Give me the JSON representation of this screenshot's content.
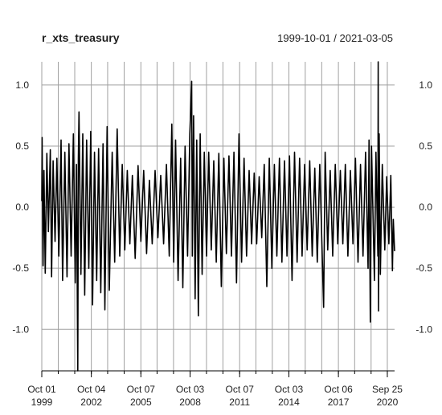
{
  "chart_data": {
    "type": "line",
    "title": "r_xts_treasury",
    "date_range": "1999-10-01 / 2021-03-05",
    "xlabel": "",
    "ylabel": "",
    "xlim": [
      "1999-10-01",
      "2021-03-05"
    ],
    "ylim": [
      -1.34,
      1.19
    ],
    "grid": true,
    "legend": "none",
    "line_color": "#000000",
    "grid_color": "#a0a0a0",
    "y_ticks": [
      {
        "value": 1.0,
        "label": "1.0"
      },
      {
        "value": 0.5,
        "label": "0.5"
      },
      {
        "value": 0.0,
        "label": "0.0"
      },
      {
        "value": -0.5,
        "label": "-0.5"
      },
      {
        "value": -1.0,
        "label": "-1.0"
      }
    ],
    "x_major_ticks": [
      {
        "date": "1999-10-01",
        "label1": "Oct 01",
        "label2": "1999"
      },
      {
        "date": "2002-10-04",
        "label1": "Oct 04",
        "label2": "2002"
      },
      {
        "date": "2005-10-07",
        "label1": "Oct 07",
        "label2": "2005"
      },
      {
        "date": "2008-10-03",
        "label1": "Oct 03",
        "label2": "2008"
      },
      {
        "date": "2011-10-07",
        "label1": "Oct 07",
        "label2": "2011"
      },
      {
        "date": "2014-10-03",
        "label1": "Oct 03",
        "label2": "2014"
      },
      {
        "date": "2017-10-06",
        "label1": "Oct 06",
        "label2": "2017"
      },
      {
        "date": "2020-09-25",
        "label1": "Sep 25",
        "label2": "2020"
      }
    ],
    "x_grid_dates": [
      "1999-10-01",
      "2000-10-01",
      "2001-10-01",
      "2002-10-04",
      "2003-10-01",
      "2004-10-01",
      "2005-10-07",
      "2006-10-01",
      "2007-10-01",
      "2008-10-03",
      "2009-10-01",
      "2010-10-01",
      "2011-10-07",
      "2012-10-01",
      "2013-10-01",
      "2014-10-03",
      "2015-10-01",
      "2016-10-01",
      "2017-10-06",
      "2018-10-01",
      "2019-10-01",
      "2020-09-25"
    ],
    "series": [
      {
        "values": [
          {
            "x": "1999-10-01",
            "y": 0.05
          },
          {
            "x": "1999-10-08",
            "y": 0.57
          },
          {
            "x": "1999-10-29",
            "y": -0.48
          },
          {
            "x": "1999-11-19",
            "y": 0.3
          },
          {
            "x": "1999-12-17",
            "y": -0.54
          },
          {
            "x": "2000-01-21",
            "y": 0.44
          },
          {
            "x": "2000-02-25",
            "y": -0.2
          },
          {
            "x": "2000-04-07",
            "y": 0.47
          },
          {
            "x": "2000-05-05",
            "y": -0.57
          },
          {
            "x": "2000-06-09",
            "y": 0.38
          },
          {
            "x": "2000-07-21",
            "y": -0.28
          },
          {
            "x": "2000-09-01",
            "y": 0.4
          },
          {
            "x": "2000-10-13",
            "y": -0.4
          },
          {
            "x": "2000-12-01",
            "y": 0.55
          },
          {
            "x": "2001-01-05",
            "y": -0.6
          },
          {
            "x": "2001-02-23",
            "y": 0.45
          },
          {
            "x": "2001-04-13",
            "y": -0.57
          },
          {
            "x": "2001-05-25",
            "y": 0.52
          },
          {
            "x": "2001-07-13",
            "y": -0.4
          },
          {
            "x": "2001-08-31",
            "y": 0.6
          },
          {
            "x": "2001-10-12",
            "y": -0.62
          },
          {
            "x": "2001-11-09",
            "y": 0.35
          },
          {
            "x": "2001-11-30",
            "y": -0.95
          },
          {
            "x": "2001-12-07",
            "y": -1.34
          },
          {
            "x": "2001-12-21",
            "y": 0.4
          },
          {
            "x": "2002-01-04",
            "y": 0.78
          },
          {
            "x": "2002-02-15",
            "y": -0.55
          },
          {
            "x": "2002-03-29",
            "y": 0.6
          },
          {
            "x": "2002-05-10",
            "y": -0.72
          },
          {
            "x": "2002-06-21",
            "y": 0.55
          },
          {
            "x": "2002-08-09",
            "y": -0.5
          },
          {
            "x": "2002-09-20",
            "y": 0.62
          },
          {
            "x": "2002-11-01",
            "y": -0.8
          },
          {
            "x": "2002-12-13",
            "y": 0.45
          },
          {
            "x": "2003-01-31",
            "y": -0.6
          },
          {
            "x": "2003-03-14",
            "y": 0.48
          },
          {
            "x": "2003-05-02",
            "y": -0.7
          },
          {
            "x": "2003-06-20",
            "y": 0.52
          },
          {
            "x": "2003-08-01",
            "y": -0.84
          },
          {
            "x": "2003-09-19",
            "y": 0.66
          },
          {
            "x": "2003-11-07",
            "y": -0.68
          },
          {
            "x": "2004-01-09",
            "y": 0.45
          },
          {
            "x": "2004-03-05",
            "y": -0.45
          },
          {
            "x": "2004-04-30",
            "y": 0.64
          },
          {
            "x": "2004-06-25",
            "y": -0.4
          },
          {
            "x": "2004-08-20",
            "y": 0.35
          },
          {
            "x": "2004-10-15",
            "y": -0.35
          },
          {
            "x": "2004-12-10",
            "y": 0.3
          },
          {
            "x": "2005-02-04",
            "y": -0.3
          },
          {
            "x": "2005-04-01",
            "y": 0.26
          },
          {
            "x": "2005-06-03",
            "y": -0.42
          },
          {
            "x": "2005-08-05",
            "y": 0.34
          },
          {
            "x": "2005-10-07",
            "y": -0.28
          },
          {
            "x": "2005-12-09",
            "y": 0.3
          },
          {
            "x": "2006-02-10",
            "y": -0.38
          },
          {
            "x": "2006-04-14",
            "y": 0.22
          },
          {
            "x": "2006-06-16",
            "y": -0.3
          },
          {
            "x": "2006-08-18",
            "y": 0.3
          },
          {
            "x": "2006-10-20",
            "y": -0.25
          },
          {
            "x": "2006-12-22",
            "y": 0.26
          },
          {
            "x": "2007-02-23",
            "y": -0.3
          },
          {
            "x": "2007-04-27",
            "y": 0.35
          },
          {
            "x": "2007-06-29",
            "y": -0.4
          },
          {
            "x": "2007-08-24",
            "y": 0.68
          },
          {
            "x": "2007-10-05",
            "y": -0.45
          },
          {
            "x": "2007-11-16",
            "y": 0.55
          },
          {
            "x": "2008-01-11",
            "y": -0.6
          },
          {
            "x": "2008-03-07",
            "y": 0.4
          },
          {
            "x": "2008-04-25",
            "y": -0.66
          },
          {
            "x": "2008-06-13",
            "y": 0.5
          },
          {
            "x": "2008-08-08",
            "y": -0.4
          },
          {
            "x": "2008-09-26",
            "y": 0.6
          },
          {
            "x": "2008-11-07",
            "y": 1.03
          },
          {
            "x": "2008-11-21",
            "y": -0.4
          },
          {
            "x": "2008-12-19",
            "y": 0.75
          },
          {
            "x": "2009-01-23",
            "y": -0.75
          },
          {
            "x": "2009-02-27",
            "y": 0.55
          },
          {
            "x": "2009-04-03",
            "y": -0.89
          },
          {
            "x": "2009-05-15",
            "y": 0.6
          },
          {
            "x": "2009-06-26",
            "y": -0.55
          },
          {
            "x": "2009-08-14",
            "y": 0.45
          },
          {
            "x": "2009-10-02",
            "y": -0.4
          },
          {
            "x": "2009-11-20",
            "y": 0.45
          },
          {
            "x": "2010-01-15",
            "y": -0.35
          },
          {
            "x": "2010-03-12",
            "y": 0.38
          },
          {
            "x": "2010-05-07",
            "y": -0.45
          },
          {
            "x": "2010-07-02",
            "y": 0.44
          },
          {
            "x": "2010-08-27",
            "y": -0.65
          },
          {
            "x": "2010-10-22",
            "y": 0.4
          },
          {
            "x": "2010-12-17",
            "y": -0.38
          },
          {
            "x": "2011-02-11",
            "y": 0.42
          },
          {
            "x": "2011-04-08",
            "y": -0.4
          },
          {
            "x": "2011-06-03",
            "y": 0.45
          },
          {
            "x": "2011-07-29",
            "y": -0.62
          },
          {
            "x": "2011-09-23",
            "y": 0.6
          },
          {
            "x": "2011-11-18",
            "y": -0.45
          },
          {
            "x": "2012-01-13",
            "y": 0.4
          },
          {
            "x": "2012-03-09",
            "y": -0.4
          },
          {
            "x": "2012-05-04",
            "y": 0.3
          },
          {
            "x": "2012-06-29",
            "y": -0.3
          },
          {
            "x": "2012-08-24",
            "y": 0.28
          },
          {
            "x": "2012-10-19",
            "y": -0.3
          },
          {
            "x": "2012-12-14",
            "y": 0.25
          },
          {
            "x": "2013-02-08",
            "y": -0.25
          },
          {
            "x": "2013-04-05",
            "y": 0.35
          },
          {
            "x": "2013-05-31",
            "y": -0.65
          },
          {
            "x": "2013-07-26",
            "y": 0.4
          },
          {
            "x": "2013-09-20",
            "y": -0.5
          },
          {
            "x": "2013-11-15",
            "y": 0.35
          },
          {
            "x": "2014-01-10",
            "y": -0.4
          },
          {
            "x": "2014-03-07",
            "y": 0.4
          },
          {
            "x": "2014-05-02",
            "y": -0.45
          },
          {
            "x": "2014-06-27",
            "y": 0.38
          },
          {
            "x": "2014-08-22",
            "y": -0.4
          },
          {
            "x": "2014-10-17",
            "y": 0.42
          },
          {
            "x": "2014-12-12",
            "y": -0.6
          },
          {
            "x": "2015-02-06",
            "y": 0.45
          },
          {
            "x": "2015-04-03",
            "y": -0.45
          },
          {
            "x": "2015-05-29",
            "y": 0.4
          },
          {
            "x": "2015-07-24",
            "y": -0.4
          },
          {
            "x": "2015-09-18",
            "y": 0.35
          },
          {
            "x": "2015-11-13",
            "y": -0.35
          },
          {
            "x": "2016-01-08",
            "y": 0.38
          },
          {
            "x": "2016-03-04",
            "y": -0.4
          },
          {
            "x": "2016-04-29",
            "y": 0.32
          },
          {
            "x": "2016-06-24",
            "y": -0.45
          },
          {
            "x": "2016-08-19",
            "y": 0.35
          },
          {
            "x": "2016-11-11",
            "y": -0.82
          },
          {
            "x": "2016-12-16",
            "y": 0.45
          },
          {
            "x": "2017-02-10",
            "y": -0.35
          },
          {
            "x": "2017-04-07",
            "y": 0.3
          },
          {
            "x": "2017-06-02",
            "y": -0.4
          },
          {
            "x": "2017-07-28",
            "y": 0.35
          },
          {
            "x": "2017-09-22",
            "y": -0.3
          },
          {
            "x": "2017-11-17",
            "y": 0.3
          },
          {
            "x": "2018-01-12",
            "y": -0.3
          },
          {
            "x": "2018-03-09",
            "y": 0.35
          },
          {
            "x": "2018-05-04",
            "y": -0.4
          },
          {
            "x": "2018-06-29",
            "y": 0.3
          },
          {
            "x": "2018-08-24",
            "y": -0.3
          },
          {
            "x": "2018-10-19",
            "y": 0.4
          },
          {
            "x": "2018-12-14",
            "y": -0.45
          },
          {
            "x": "2019-02-08",
            "y": 0.35
          },
          {
            "x": "2019-04-05",
            "y": -0.4
          },
          {
            "x": "2019-05-31",
            "y": 0.45
          },
          {
            "x": "2019-07-26",
            "y": -0.5
          },
          {
            "x": "2019-08-16",
            "y": 0.55
          },
          {
            "x": "2019-09-13",
            "y": -0.94
          },
          {
            "x": "2019-10-11",
            "y": 0.5
          },
          {
            "x": "2019-12-13",
            "y": -0.6
          },
          {
            "x": "2020-01-17",
            "y": 0.45
          },
          {
            "x": "2020-02-28",
            "y": -0.4
          },
          {
            "x": "2020-03-06",
            "y": 1.19
          },
          {
            "x": "2020-03-13",
            "y": -0.85
          },
          {
            "x": "2020-03-27",
            "y": 0.6
          },
          {
            "x": "2020-04-24",
            "y": -0.55
          },
          {
            "x": "2020-06-05",
            "y": 0.35
          },
          {
            "x": "2020-07-31",
            "y": -0.35
          },
          {
            "x": "2020-09-11",
            "y": 0.25
          },
          {
            "x": "2020-10-30",
            "y": -0.3
          },
          {
            "x": "2020-12-11",
            "y": 0.26
          },
          {
            "x": "2021-01-15",
            "y": -0.52
          },
          {
            "x": "2021-02-05",
            "y": -0.1
          },
          {
            "x": "2021-03-05",
            "y": -0.36
          }
        ]
      }
    ]
  }
}
